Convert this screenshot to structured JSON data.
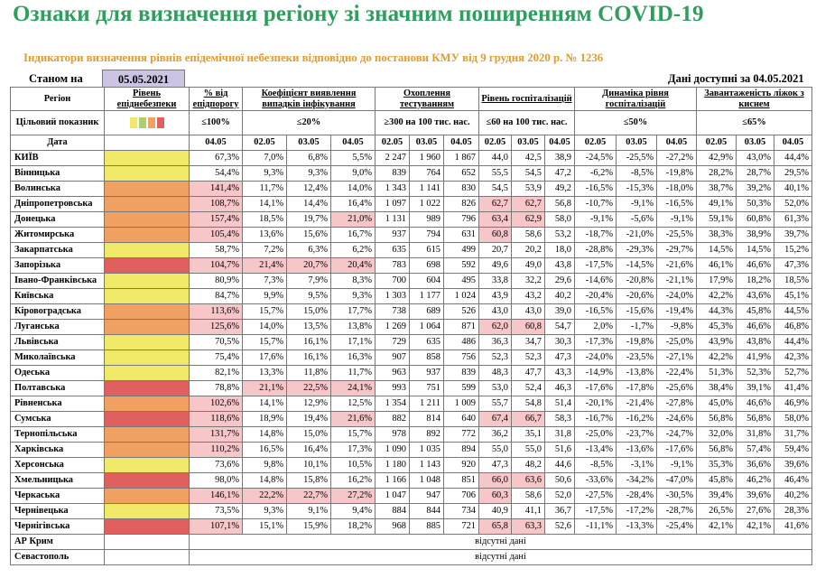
{
  "title": "Ознаки для визначення регіону зі значним поширенням COVID-19",
  "subtitle": "Індикатори визначення рівнів епідемічної небезпеки відповідно до постанови КМУ від 9 грудня 2020 р. № 1236",
  "state_label": "Станом на",
  "state_date": "05.05.2021",
  "data_available": "Дані доступні за  04.05.2021",
  "headers": {
    "region": "Регіон",
    "level": "Рівень епіднебезпеки",
    "pct_threshold": "% від епідпорогу",
    "detection": "Коефіцієнт виявлення випадків інфікування",
    "testing": "Охоплення тестуванням",
    "hosp_level": "Рівень госпіталізацій",
    "hosp_dynamics": "Динаміка рівня госпіталізацій",
    "beds": "Завантаженість ліжок з киснем",
    "target": "Цільовий показник",
    "date": "Дата",
    "t_pct": "≤100%",
    "t_detection": "≤20%",
    "t_testing": "≥300 на 100 тис. нас.",
    "t_hosp": "≤60 на 100 тис. нас.",
    "t_dyn": "≤50%",
    "t_beds": "≤65%",
    "d_pct": "04.05",
    "d1": "02.05",
    "d2": "03.05",
    "d3": "04.05"
  },
  "target_swatch_colors": [
    "#f0e868",
    "#a9d26c",
    "#f0a060",
    "#e06060"
  ],
  "colors": {
    "yellow": "#f0e868",
    "orange": "#f0a060",
    "red": "#e06060",
    "pink": "#f6c6c8",
    "title": "#2e9e5c",
    "subtitle": "#e09c2c"
  },
  "rows": [
    {
      "region": "КИЇВ",
      "level": "yellow",
      "pct": "67,3%",
      "det": [
        "7,0%",
        "6,8%",
        "5,5%"
      ],
      "test": [
        "2 247",
        "1 960",
        "1 867"
      ],
      "hosp": [
        "44,0",
        "42,5",
        "38,9"
      ],
      "dyn": [
        "-24,5%",
        "-25,5%",
        "-27,2%"
      ],
      "beds": [
        "42,9%",
        "43,0%",
        "44,4%"
      ],
      "hl": {}
    },
    {
      "region": "Вінницька",
      "level": "yellow",
      "pct": "54,4%",
      "det": [
        "9,3%",
        "9,3%",
        "9,0%"
      ],
      "test": [
        "839",
        "764",
        "652"
      ],
      "hosp": [
        "55,5",
        "54,5",
        "47,2"
      ],
      "dyn": [
        "-6,2%",
        "-8,5%",
        "-19,8%"
      ],
      "beds": [
        "28,2%",
        "28,7%",
        "29,5%"
      ],
      "hl": {}
    },
    {
      "region": "Волинська",
      "level": "orange",
      "pct": "141,4%",
      "det": [
        "11,7%",
        "12,4%",
        "14,0%"
      ],
      "test": [
        "1 343",
        "1 141",
        "830"
      ],
      "hosp": [
        "54,5",
        "53,9",
        "49,2"
      ],
      "dyn": [
        "-16,5%",
        "-15,3%",
        "-18,0%"
      ],
      "beds": [
        "38,7%",
        "39,2%",
        "40,1%"
      ],
      "hl": {
        "pct": 1
      }
    },
    {
      "region": "Дніпропетровська",
      "level": "orange",
      "pct": "108,7%",
      "det": [
        "14,1%",
        "14,4%",
        "16,4%"
      ],
      "test": [
        "1 097",
        "1 022",
        "826"
      ],
      "hosp": [
        "62,7",
        "62,7",
        "56,8"
      ],
      "dyn": [
        "-10,7%",
        "-9,1%",
        "-16,5%"
      ],
      "beds": [
        "49,1%",
        "50,3%",
        "52,0%"
      ],
      "hl": {
        "pct": 1,
        "hosp": [
          1,
          1,
          0
        ]
      }
    },
    {
      "region": "Донецька",
      "level": "orange",
      "pct": "157,4%",
      "det": [
        "18,5%",
        "19,7%",
        "21,0%"
      ],
      "test": [
        "1 131",
        "989",
        "796"
      ],
      "hosp": [
        "63,4",
        "62,9",
        "58,0"
      ],
      "dyn": [
        "-9,1%",
        "-5,6%",
        "-9,1%"
      ],
      "beds": [
        "59,1%",
        "60,8%",
        "61,3%"
      ],
      "hl": {
        "pct": 1,
        "det": [
          0,
          0,
          1
        ],
        "hosp": [
          1,
          1,
          0
        ]
      }
    },
    {
      "region": "Житомирська",
      "level": "orange",
      "pct": "105,4%",
      "det": [
        "13,6%",
        "15,6%",
        "16,7%"
      ],
      "test": [
        "937",
        "794",
        "631"
      ],
      "hosp": [
        "60,8",
        "58,6",
        "53,2"
      ],
      "dyn": [
        "-18,7%",
        "-21,0%",
        "-25,5%"
      ],
      "beds": [
        "38,3%",
        "38,9%",
        "39,7%"
      ],
      "hl": {
        "pct": 1,
        "hosp": [
          1,
          0,
          0
        ]
      }
    },
    {
      "region": "Закарпатська",
      "level": "yellow",
      "pct": "58,7%",
      "det": [
        "7,2%",
        "6,3%",
        "6,2%"
      ],
      "test": [
        "635",
        "615",
        "499"
      ],
      "hosp": [
        "20,7",
        "20,2",
        "18,0"
      ],
      "dyn": [
        "-28,8%",
        "-29,3%",
        "-29,7%"
      ],
      "beds": [
        "14,5%",
        "14,5%",
        "15,2%"
      ],
      "hl": {}
    },
    {
      "region": "Запорізька",
      "level": "red",
      "pct": "104,7%",
      "det": [
        "21,4%",
        "20,7%",
        "20,4%"
      ],
      "test": [
        "783",
        "698",
        "592"
      ],
      "hosp": [
        "49,6",
        "49,0",
        "43,8"
      ],
      "dyn": [
        "-17,5%",
        "-14,5%",
        "-21,6%"
      ],
      "beds": [
        "46,1%",
        "46,6%",
        "47,3%"
      ],
      "hl": {
        "pct": 1,
        "det": [
          1,
          1,
          1
        ]
      }
    },
    {
      "region": "Івано-Франківська",
      "level": "yellow",
      "pct": "80,9%",
      "det": [
        "7,3%",
        "7,9%",
        "8,3%"
      ],
      "test": [
        "700",
        "604",
        "495"
      ],
      "hosp": [
        "33,8",
        "32,2",
        "29,6"
      ],
      "dyn": [
        "-14,6%",
        "-20,8%",
        "-21,1%"
      ],
      "beds": [
        "17,9%",
        "18,2%",
        "18,5%"
      ],
      "hl": {}
    },
    {
      "region": "Київська",
      "level": "yellow",
      "pct": "84,7%",
      "det": [
        "9,9%",
        "9,5%",
        "9,3%"
      ],
      "test": [
        "1 303",
        "1 177",
        "1 024"
      ],
      "hosp": [
        "43,9",
        "43,2",
        "40,2"
      ],
      "dyn": [
        "-20,4%",
        "-20,6%",
        "-24,0%"
      ],
      "beds": [
        "42,2%",
        "43,6%",
        "45,1%"
      ],
      "hl": {}
    },
    {
      "region": "Кіровоградська",
      "level": "orange",
      "pct": "113,6%",
      "det": [
        "15,7%",
        "15,0%",
        "17,7%"
      ],
      "test": [
        "738",
        "689",
        "526"
      ],
      "hosp": [
        "43,0",
        "43,0",
        "39,0"
      ],
      "dyn": [
        "-16,5%",
        "-15,6%",
        "-19,4%"
      ],
      "beds": [
        "44,3%",
        "45,8%",
        "44,5%"
      ],
      "hl": {
        "pct": 1
      }
    },
    {
      "region": "Луганська",
      "level": "orange",
      "pct": "125,6%",
      "det": [
        "14,0%",
        "13,5%",
        "13,8%"
      ],
      "test": [
        "1 269",
        "1 064",
        "871"
      ],
      "hosp": [
        "62,0",
        "60,8",
        "54,7"
      ],
      "dyn": [
        "2,0%",
        "-1,7%",
        "-9,8%"
      ],
      "beds": [
        "45,3%",
        "46,6%",
        "46,8%"
      ],
      "hl": {
        "pct": 1,
        "hosp": [
          1,
          1,
          0
        ]
      }
    },
    {
      "region": "Львівська",
      "level": "yellow",
      "pct": "70,5%",
      "det": [
        "15,7%",
        "16,1%",
        "17,1%"
      ],
      "test": [
        "729",
        "635",
        "486"
      ],
      "hosp": [
        "36,3",
        "34,7",
        "30,3"
      ],
      "dyn": [
        "-17,3%",
        "-19,8%",
        "-25,0%"
      ],
      "beds": [
        "43,9%",
        "43,8%",
        "44,4%"
      ],
      "hl": {}
    },
    {
      "region": "Миколаївська",
      "level": "yellow",
      "pct": "75,4%",
      "det": [
        "17,6%",
        "16,1%",
        "16,3%"
      ],
      "test": [
        "907",
        "858",
        "756"
      ],
      "hosp": [
        "52,3",
        "52,3",
        "47,3"
      ],
      "dyn": [
        "-24,0%",
        "-23,5%",
        "-27,1%"
      ],
      "beds": [
        "42,2%",
        "41,9%",
        "42,3%"
      ],
      "hl": {}
    },
    {
      "region": "Одеська",
      "level": "yellow",
      "pct": "82,1%",
      "det": [
        "13,3%",
        "11,8%",
        "11,7%"
      ],
      "test": [
        "963",
        "937",
        "839"
      ],
      "hosp": [
        "48,3",
        "47,7",
        "43,3"
      ],
      "dyn": [
        "-14,9%",
        "-13,8%",
        "-22,4%"
      ],
      "beds": [
        "51,3%",
        "52,3%",
        "52,7%"
      ],
      "hl": {}
    },
    {
      "region": "Полтавська",
      "level": "red",
      "pct": "78,8%",
      "det": [
        "21,1%",
        "22,5%",
        "24,1%"
      ],
      "test": [
        "993",
        "751",
        "599"
      ],
      "hosp": [
        "53,0",
        "52,4",
        "46,3"
      ],
      "dyn": [
        "-17,6%",
        "-17,8%",
        "-25,6%"
      ],
      "beds": [
        "38,4%",
        "39,1%",
        "41,4%"
      ],
      "hl": {
        "det": [
          1,
          1,
          1
        ]
      }
    },
    {
      "region": "Рівненська",
      "level": "orange",
      "pct": "102,6%",
      "det": [
        "14,1%",
        "12,9%",
        "12,5%"
      ],
      "test": [
        "1 354",
        "1 211",
        "1 009"
      ],
      "hosp": [
        "55,7",
        "54,8",
        "51,4"
      ],
      "dyn": [
        "-20,1%",
        "-21,4%",
        "-27,8%"
      ],
      "beds": [
        "45,0%",
        "46,6%",
        "46,9%"
      ],
      "hl": {
        "pct": 1
      }
    },
    {
      "region": "Сумська",
      "level": "red",
      "pct": "118,6%",
      "det": [
        "18,9%",
        "19,4%",
        "21,6%"
      ],
      "test": [
        "882",
        "814",
        "640"
      ],
      "hosp": [
        "67,4",
        "66,7",
        "58,3"
      ],
      "dyn": [
        "-16,7%",
        "-16,2%",
        "-24,6%"
      ],
      "beds": [
        "56,8%",
        "56,8%",
        "58,0%"
      ],
      "hl": {
        "pct": 1,
        "det": [
          0,
          0,
          1
        ],
        "hosp": [
          1,
          1,
          0
        ]
      }
    },
    {
      "region": "Тернопільська",
      "level": "orange",
      "pct": "131,7%",
      "det": [
        "14,8%",
        "15,0%",
        "15,7%"
      ],
      "test": [
        "978",
        "892",
        "772"
      ],
      "hosp": [
        "36,2",
        "35,1",
        "31,8"
      ],
      "dyn": [
        "-25,0%",
        "-23,7%",
        "-24,7%"
      ],
      "beds": [
        "32,0%",
        "31,8%",
        "31,7%"
      ],
      "hl": {
        "pct": 1
      }
    },
    {
      "region": "Харківська",
      "level": "orange",
      "pct": "110,2%",
      "det": [
        "16,5%",
        "16,4%",
        "17,3%"
      ],
      "test": [
        "1 090",
        "1 035",
        "894"
      ],
      "hosp": [
        "55,0",
        "55,0",
        "51,6"
      ],
      "dyn": [
        "-13,4%",
        "-13,6%",
        "-17,6%"
      ],
      "beds": [
        "56,8%",
        "57,4%",
        "59,4%"
      ],
      "hl": {
        "pct": 1
      }
    },
    {
      "region": "Херсонська",
      "level": "yellow",
      "pct": "73,6%",
      "det": [
        "9,8%",
        "10,1%",
        "10,5%"
      ],
      "test": [
        "1 180",
        "1 143",
        "920"
      ],
      "hosp": [
        "47,3",
        "48,2",
        "44,6"
      ],
      "dyn": [
        "-8,5%",
        "-3,1%",
        "-9,1%"
      ],
      "beds": [
        "35,3%",
        "36,6%",
        "39,6%"
      ],
      "hl": {}
    },
    {
      "region": "Хмельницька",
      "level": "red",
      "pct": "98,0%",
      "det": [
        "14,8%",
        "15,8%",
        "16,2%"
      ],
      "test": [
        "1 166",
        "1 048",
        "851"
      ],
      "hosp": [
        "66,0",
        "63,6",
        "50,6"
      ],
      "dyn": [
        "-33,6%",
        "-34,2%",
        "-47,0%"
      ],
      "beds": [
        "45,8%",
        "46,2%",
        "46,4%"
      ],
      "hl": {
        "hosp": [
          1,
          1,
          0
        ]
      }
    },
    {
      "region": "Черкаська",
      "level": "orange",
      "pct": "146,1%",
      "det": [
        "22,2%",
        "22,7%",
        "27,2%"
      ],
      "test": [
        "1 047",
        "947",
        "706"
      ],
      "hosp": [
        "60,3",
        "58,6",
        "52,0"
      ],
      "dyn": [
        "-27,5%",
        "-28,4%",
        "-30,5%"
      ],
      "beds": [
        "39,4%",
        "39,6%",
        "40,2%"
      ],
      "hl": {
        "pct": 1,
        "det": [
          1,
          1,
          1
        ],
        "hosp": [
          1,
          0,
          0
        ]
      }
    },
    {
      "region": "Чернівецька",
      "level": "yellow",
      "pct": "73,5%",
      "det": [
        "9,3%",
        "9,1%",
        "9,4%"
      ],
      "test": [
        "884",
        "844",
        "734"
      ],
      "hosp": [
        "40,9",
        "41,1",
        "36,7"
      ],
      "dyn": [
        "-17,5%",
        "-17,2%",
        "-28,7%"
      ],
      "beds": [
        "26,5%",
        "27,6%",
        "28,3%"
      ],
      "hl": {}
    },
    {
      "region": "Чернігівська",
      "level": "red",
      "pct": "107,1%",
      "det": [
        "15,1%",
        "15,9%",
        "18,2%"
      ],
      "test": [
        "968",
        "885",
        "721"
      ],
      "hosp": [
        "65,8",
        "63,3",
        "52,6"
      ],
      "dyn": [
        "-11,1%",
        "-13,3%",
        "-25,4%"
      ],
      "beds": [
        "42,1%",
        "42,1%",
        "41,6%"
      ],
      "hl": {
        "pct": 1,
        "hosp": [
          1,
          1,
          0
        ]
      }
    }
  ],
  "missing": [
    {
      "region": "АР Крим",
      "text": "відсутні дані"
    },
    {
      "region": "Севастополь",
      "text": "відсутні дані"
    }
  ]
}
